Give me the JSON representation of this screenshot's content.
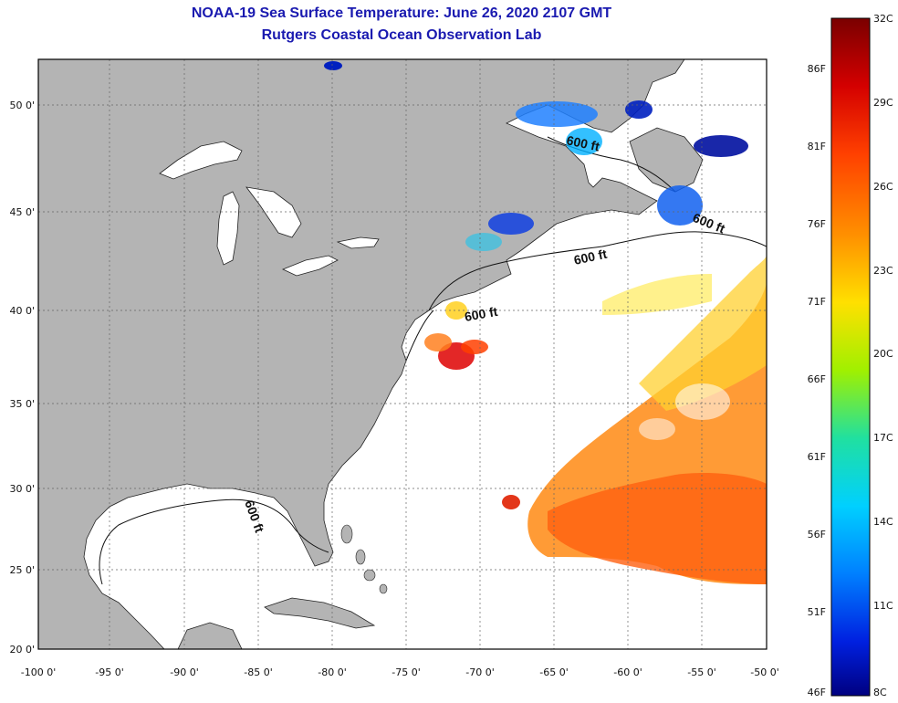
{
  "header": {
    "title": "NOAA-19 Sea Surface Temperature:  June 26, 2020 2107 GMT",
    "subtitle": "Rutgers Coastal Ocean Observation Lab"
  },
  "map": {
    "latitude_labels": [
      "50 0'",
      "45 0'",
      "40 0'",
      "35 0'",
      "30 0'",
      "25 0'",
      "20 0'"
    ],
    "longitude_labels": [
      "-100 0'",
      "-95 0'",
      "-90 0'",
      "-85 0'",
      "-80 0'",
      "-75 0'",
      "-70 0'",
      "-65 0'",
      "-60 0'",
      "-55 0'",
      "-50 0'"
    ],
    "contour_label": "600 ft",
    "colors": {
      "land": "#b4b4b4",
      "water": "#ffffff",
      "grid": "#888888"
    }
  },
  "colorbar": {
    "celsius_labels": [
      "32C",
      "29C",
      "26C",
      "23C",
      "20C",
      "17C",
      "14C",
      "11C",
      "8C"
    ],
    "fahrenheit_labels": [
      "86F",
      "81F",
      "76F",
      "71F",
      "66F",
      "61F",
      "56F",
      "51F",
      "46F"
    ],
    "colors": [
      "#7a0000",
      "#d40000",
      "#ff4000",
      "#ff9000",
      "#ffe000",
      "#a0f000",
      "#20e0a0",
      "#00d0ff",
      "#0080ff",
      "#0020e0",
      "#000080"
    ]
  }
}
